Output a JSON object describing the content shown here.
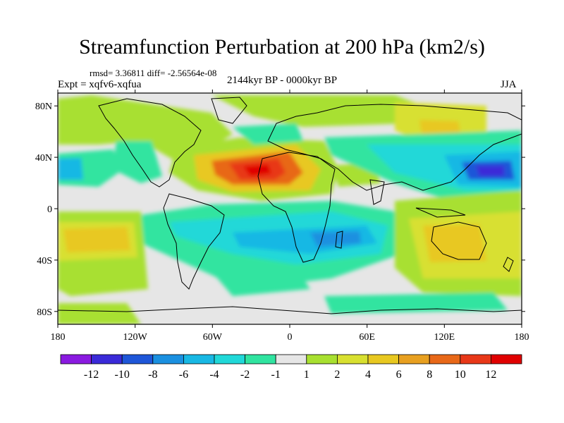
{
  "title": "Streamfunction Perturbation at 200 hPa (km2/s)",
  "stats": "rmsd= 3.36811 diff= -2.56564e-08",
  "experiment": "Expt = xqfv6-xqfua",
  "period": "2144kyr BP - 0000kyr BP",
  "season": "JJA",
  "axes": {
    "lat_labels": [
      "80N",
      "40N",
      "0",
      "40S",
      "80S"
    ],
    "lon_labels": [
      "180",
      "120W",
      "60W",
      "0",
      "60E",
      "120E",
      "180"
    ]
  },
  "colorbar": {
    "labels": [
      "-12",
      "-10",
      "-8",
      "-6",
      "-4",
      "-2",
      "-1",
      "1",
      "2",
      "4",
      "6",
      "8",
      "10",
      "12"
    ],
    "colors": [
      "#8a1ae0",
      "#3a2ad8",
      "#1e56d8",
      "#1a90e0",
      "#18b8e4",
      "#20d8d8",
      "#30e4a0",
      "#e6e6e6",
      "#a8e030",
      "#d8e030",
      "#e8c820",
      "#e8a020",
      "#e86818",
      "#e83818",
      "#e00000"
    ]
  },
  "field_colors": {
    "neutral": "#e6e6e6",
    "pos1": "#a8e030",
    "pos2": "#d8e030",
    "pos3": "#e8c820",
    "pos4": "#e8a020",
    "pos5": "#e86818",
    "pos6": "#e83818",
    "pos7": "#e00000",
    "neg1": "#30e4a0",
    "neg2": "#20d8d8",
    "neg3": "#18b8e4",
    "neg4": "#1a90e0",
    "neg5": "#1e56d8",
    "neg6": "#3a2ad8",
    "neg7": "#8a1ae0",
    "coast": "#000000"
  }
}
